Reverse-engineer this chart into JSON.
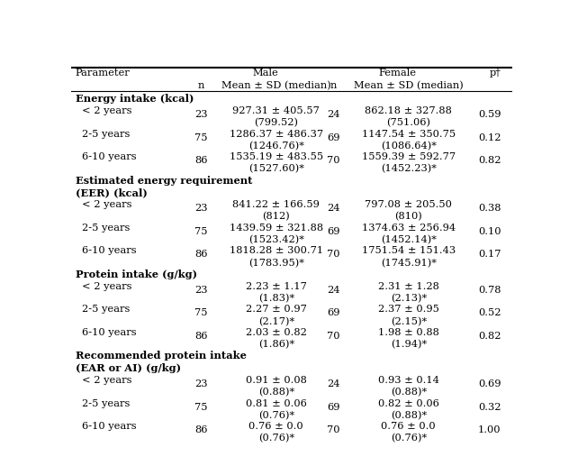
{
  "headers": {
    "col0": "Parameter",
    "male_label": "Male",
    "female_label": "Female",
    "col1": "n",
    "col2": "Mean ± SD (median)",
    "col3": "n",
    "col4": "Mean ± SD (median)",
    "col5": "p†"
  },
  "sections": [
    {
      "section_header": [
        "Energy intake (kcal)"
      ],
      "rows": [
        {
          "param": "< 2 years",
          "n_male": "23",
          "male_line1": "927.31 ± 405.57",
          "male_line2": "(799.52)",
          "n_female": "24",
          "female_line1": "862.18 ± 327.88",
          "female_line2": "(751.06)",
          "p": "0.59"
        },
        {
          "param": "2-5 years",
          "n_male": "75",
          "male_line1": "1286.37 ± 486.37",
          "male_line2": "(1246.76)*",
          "n_female": "69",
          "female_line1": "1147.54 ± 350.75",
          "female_line2": "(1086.64)*",
          "p": "0.12"
        },
        {
          "param": "6-10 years",
          "n_male": "86",
          "male_line1": "1535.19 ± 483.55",
          "male_line2": "(1527.60)*",
          "n_female": "70",
          "female_line1": "1559.39 ± 592.77",
          "female_line2": "(1452.23)*",
          "p": "0.82"
        }
      ]
    },
    {
      "section_header": [
        "Estimated energy requirement",
        "(EER) (kcal)"
      ],
      "rows": [
        {
          "param": "< 2 years",
          "n_male": "23",
          "male_line1": "841.22 ± 166.59",
          "male_line2": "(812)",
          "n_female": "24",
          "female_line1": "797.08 ± 205.50",
          "female_line2": "(810)",
          "p": "0.38"
        },
        {
          "param": "2-5 years",
          "n_male": "75",
          "male_line1": "1439.59 ± 321.88",
          "male_line2": "(1523.42)*",
          "n_female": "69",
          "female_line1": "1374.63 ± 256.94",
          "female_line2": "(1452.14)*",
          "p": "0.10"
        },
        {
          "param": "6-10 years",
          "n_male": "86",
          "male_line1": "1818.28 ± 300.71",
          "male_line2": "(1783.95)*",
          "n_female": "70",
          "female_line1": "1751.54 ± 151.43",
          "female_line2": "(1745.91)*",
          "p": "0.17"
        }
      ]
    },
    {
      "section_header": [
        "Protein intake (g/kg)"
      ],
      "rows": [
        {
          "param": "< 2 years",
          "n_male": "23",
          "male_line1": "2.23 ± 1.17",
          "male_line2": "(1.83)*",
          "n_female": "24",
          "female_line1": "2.31 ± 1.28",
          "female_line2": "(2.13)*",
          "p": "0.78"
        },
        {
          "param": "2-5 years",
          "n_male": "75",
          "male_line1": "2.27 ± 0.97",
          "male_line2": "(2.17)*",
          "n_female": "69",
          "female_line1": "2.37 ± 0.95",
          "female_line2": "(2.15)*",
          "p": "0.52"
        },
        {
          "param": "6-10 years",
          "n_male": "86",
          "male_line1": "2.03 ± 0.82",
          "male_line2": "(1.86)*",
          "n_female": "70",
          "female_line1": "1.98 ± 0.88",
          "female_line2": "(1.94)*",
          "p": "0.82"
        }
      ]
    },
    {
      "section_header": [
        "Recommended protein intake",
        "(EAR or AI) (g/kg)"
      ],
      "rows": [
        {
          "param": "< 2 years",
          "n_male": "23",
          "male_line1": "0.91 ± 0.08",
          "male_line2": "(0.88)*",
          "n_female": "24",
          "female_line1": "0.93 ± 0.14",
          "female_line2": "(0.88)*",
          "p": "0.69"
        },
        {
          "param": "2-5 years",
          "n_male": "75",
          "male_line1": "0.81 ± 0.06",
          "male_line2": "(0.76)*",
          "n_female": "69",
          "female_line1": "0.82 ± 0.06",
          "female_line2": "(0.88)*",
          "p": "0.32"
        },
        {
          "param": "6-10 years",
          "n_male": "86",
          "male_line1": "0.76 ± 0.0",
          "male_line2": "(0.76)*",
          "n_female": "70",
          "female_line1": "0.76 ± 0.0",
          "female_line2": "(0.76)*",
          "p": "1.00"
        }
      ]
    }
  ],
  "bg_color": "#ffffff",
  "text_color": "#000000",
  "font_size": 8.2
}
